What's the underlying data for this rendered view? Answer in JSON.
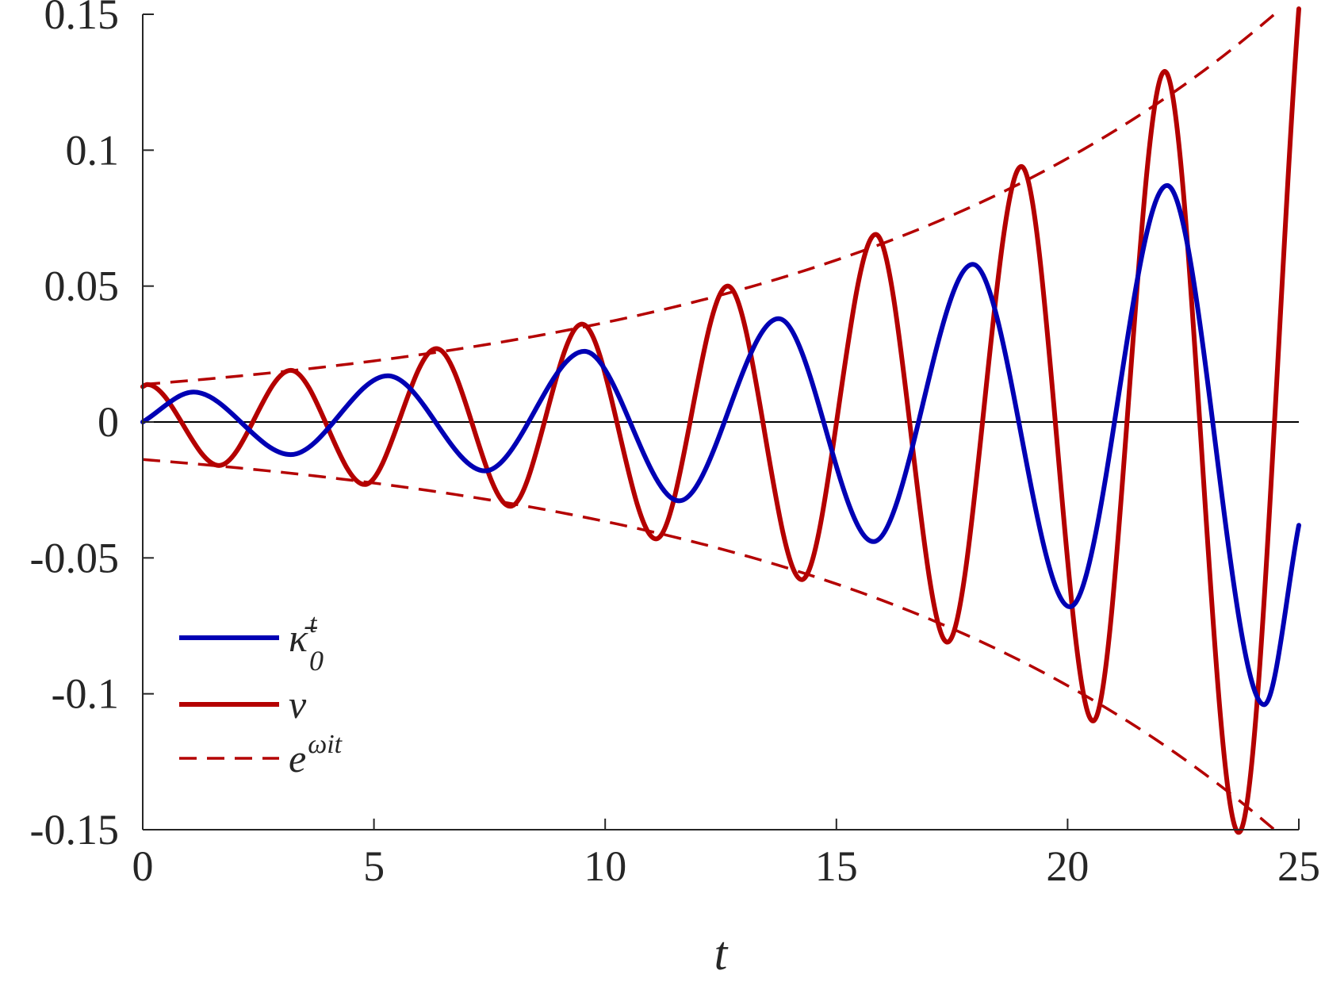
{
  "chart_data": {
    "type": "line",
    "xlabel": "t",
    "ylabel": "",
    "xlim": [
      0,
      25
    ],
    "ylim": [
      -0.15,
      0.15
    ],
    "xticks": [
      0,
      5,
      10,
      15,
      20,
      25
    ],
    "xtick_labels": [
      "0",
      "5",
      "10",
      "15",
      "20",
      "25"
    ],
    "yticks": [
      -0.15,
      -0.1,
      -0.05,
      0,
      0.05,
      0.1,
      0.15
    ],
    "ytick_labels": [
      "-0.15",
      "-0.1",
      "-0.05",
      "0",
      "0.05",
      "0.1",
      "0.15"
    ],
    "legend_position": "bottom-left",
    "zero_line": true,
    "series": [
      {
        "name": "κ̄₀ᵗ",
        "legend": {
          "base": "κ̄",
          "sub": "0",
          "sup": "t"
        },
        "color": "#0000b4",
        "style": "solid",
        "points": [
          [
            0,
            0
          ],
          [
            1.1,
            0.011
          ],
          [
            3.2,
            -0.012
          ],
          [
            5.3,
            0.017
          ],
          [
            7.4,
            -0.018
          ],
          [
            9.55,
            0.026
          ],
          [
            11.6,
            -0.029
          ],
          [
            13.75,
            0.038
          ],
          [
            15.8,
            -0.044
          ],
          [
            17.95,
            0.058
          ],
          [
            20.05,
            -0.068
          ],
          [
            22.15,
            0.087
          ],
          [
            24.25,
            -0.104
          ],
          [
            25.0,
            -0.038
          ]
        ]
      },
      {
        "name": "v",
        "legend": {
          "base": "v",
          "sub": "",
          "sup": ""
        },
        "color": "#b40000",
        "style": "solid",
        "points": [
          [
            0,
            0.013
          ],
          [
            0.1,
            0.0138
          ],
          [
            1.65,
            -0.016
          ],
          [
            3.2,
            0.019
          ],
          [
            4.8,
            -0.023
          ],
          [
            6.35,
            0.027
          ],
          [
            7.95,
            -0.031
          ],
          [
            9.5,
            0.036
          ],
          [
            11.1,
            -0.043
          ],
          [
            12.65,
            0.05
          ],
          [
            14.25,
            -0.058
          ],
          [
            15.85,
            0.069
          ],
          [
            17.4,
            -0.081
          ],
          [
            19.0,
            0.094
          ],
          [
            20.55,
            -0.11
          ],
          [
            22.1,
            0.129
          ],
          [
            23.7,
            -0.151
          ],
          [
            25.0,
            0.152
          ]
        ]
      },
      {
        "name": "e^{ω_i t}",
        "legend": {
          "base": "e",
          "sub": "",
          "sup": "ωit"
        },
        "color": "#b40000",
        "style": "dashed",
        "envelope": {
          "a": 0.0138,
          "rate": 0.0975,
          "x_start": 0,
          "x_end": 24.6
        },
        "upper_points": [
          [
            0,
            0.0138
          ],
          [
            5,
            0.0224
          ],
          [
            10,
            0.0365
          ],
          [
            15,
            0.0596
          ],
          [
            20,
            0.0972
          ],
          [
            24.6,
            0.152
          ]
        ],
        "lower_points": [
          [
            0,
            -0.0138
          ],
          [
            5,
            -0.0224
          ],
          [
            10,
            -0.0365
          ],
          [
            15,
            -0.0596
          ],
          [
            20,
            -0.0972
          ],
          [
            24.6,
            -0.152
          ]
        ]
      }
    ]
  }
}
